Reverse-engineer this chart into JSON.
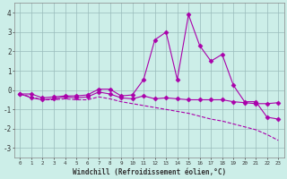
{
  "xlabel": "Windchill (Refroidissement éolien,°C)",
  "x_ticks": [
    0,
    1,
    2,
    3,
    4,
    5,
    6,
    7,
    8,
    9,
    10,
    11,
    12,
    13,
    14,
    15,
    16,
    17,
    18,
    19,
    20,
    21,
    22,
    23
  ],
  "ylim": [
    -3.5,
    4.5
  ],
  "xlim": [
    -0.5,
    23.5
  ],
  "yticks": [
    -3,
    -2,
    -1,
    0,
    1,
    2,
    3,
    4
  ],
  "background_color": "#cceee8",
  "line_color": "#aa00aa",
  "grid_color": "#99bbbb",
  "series1_x": [
    0,
    1,
    2,
    3,
    4,
    5,
    6,
    7,
    8,
    9,
    10,
    11,
    12,
    13,
    14,
    15,
    16,
    17,
    18,
    19,
    20,
    21,
    22,
    23
  ],
  "series1_y": [
    -0.2,
    -0.2,
    -0.4,
    -0.35,
    -0.3,
    -0.3,
    -0.25,
    0.05,
    0.05,
    -0.3,
    -0.25,
    0.55,
    2.6,
    3.0,
    0.55,
    3.9,
    2.3,
    1.5,
    1.85,
    0.25,
    -0.6,
    -0.6,
    -1.4,
    -1.5
  ],
  "series2_x": [
    0,
    1,
    2,
    3,
    4,
    5,
    6,
    7,
    8,
    9,
    10,
    11,
    12,
    13,
    14,
    15,
    16,
    17,
    18,
    19,
    20,
    21,
    22,
    23
  ],
  "series2_y": [
    -0.2,
    -0.4,
    -0.5,
    -0.45,
    -0.35,
    -0.4,
    -0.35,
    -0.1,
    -0.2,
    -0.4,
    -0.45,
    -0.3,
    -0.45,
    -0.4,
    -0.45,
    -0.5,
    -0.5,
    -0.5,
    -0.5,
    -0.6,
    -0.65,
    -0.7,
    -0.7,
    -0.65
  ],
  "series3_x": [
    0,
    1,
    2,
    3,
    4,
    5,
    6,
    7,
    8,
    9,
    10,
    11,
    12,
    13,
    14,
    15,
    16,
    17,
    18,
    19,
    20,
    21,
    22,
    23
  ],
  "series3_y": [
    -0.2,
    -0.35,
    -0.5,
    -0.5,
    -0.45,
    -0.5,
    -0.5,
    -0.35,
    -0.45,
    -0.6,
    -0.7,
    -0.8,
    -0.9,
    -1.0,
    -1.1,
    -1.2,
    -1.35,
    -1.5,
    -1.6,
    -1.75,
    -1.9,
    -2.05,
    -2.3,
    -2.6
  ]
}
